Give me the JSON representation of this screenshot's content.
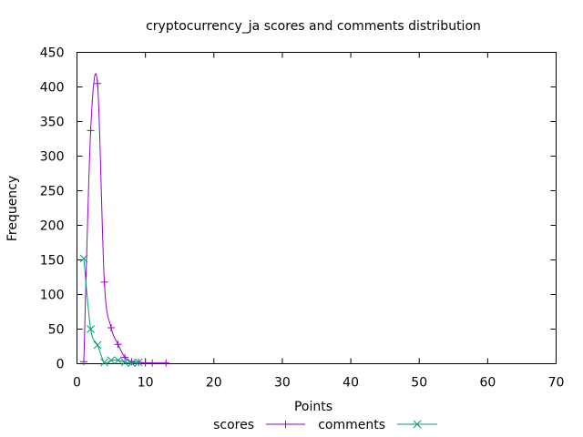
{
  "chart_data": {
    "type": "line",
    "title": "cryptocurrency_ja scores and comments distribution",
    "xlabel": "Points",
    "ylabel": "Frequency",
    "xlim": [
      0,
      70
    ],
    "ylim": [
      0,
      450
    ],
    "xticks": [
      "0",
      "10",
      "20",
      "30",
      "40",
      "50",
      "60",
      "70"
    ],
    "yticks": [
      "0",
      "50",
      "100",
      "150",
      "200",
      "250",
      "300",
      "350",
      "400",
      "450"
    ],
    "grid": false,
    "legend_position": "bottom-center",
    "series": [
      {
        "name": "scores",
        "color": "#9400d3",
        "marker": "plus",
        "x": [
          1,
          2,
          3,
          4,
          5,
          6,
          7,
          8,
          9,
          10,
          11,
          13
        ],
        "y": [
          3,
          337,
          405,
          118,
          52,
          28,
          9,
          3,
          2,
          1,
          1,
          1
        ]
      },
      {
        "name": "comments",
        "color": "#009e73",
        "marker": "x",
        "x": [
          1,
          2,
          3,
          4,
          5,
          6,
          7,
          8,
          9
        ],
        "y": [
          152,
          50,
          27,
          2,
          5,
          5,
          2,
          1,
          2
        ]
      }
    ]
  }
}
